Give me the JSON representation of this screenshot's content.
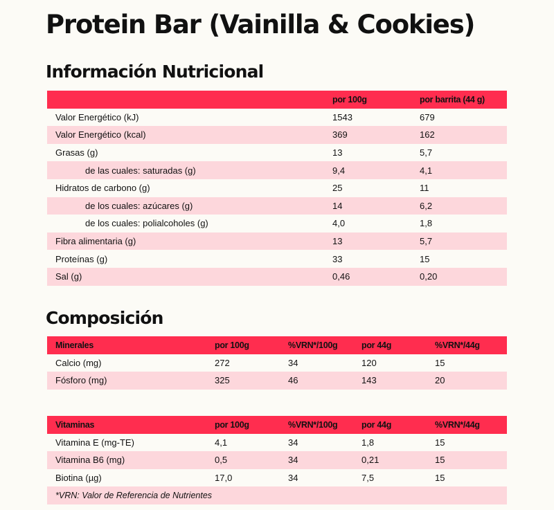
{
  "title": "Protein Bar (Vainilla & Cookies)",
  "nutrition": {
    "heading": "Información Nutricional",
    "columns": [
      "",
      "por 100g",
      "por barrita (44 g)"
    ],
    "rows": [
      {
        "label": "Valor Energético (kJ)",
        "per100": "1543",
        "perBar": "679"
      },
      {
        "label": "Valor Energético (kcal)",
        "per100": "369",
        "perBar": "162"
      },
      {
        "label": "Grasas (g)",
        "per100": "13",
        "perBar": "5,7"
      },
      {
        "label": "de las cuales: saturadas (g)",
        "per100": "9,4",
        "perBar": "4,1"
      },
      {
        "label": "Hidratos de carbono (g)",
        "per100": "25",
        "perBar": "11"
      },
      {
        "label": "de los cuales: azúcares (g)",
        "per100": "14",
        "perBar": "6,2"
      },
      {
        "label": "de los cuales: polialcoholes (g)",
        "per100": "4,0",
        "perBar": "1,8"
      },
      {
        "label": "Fibra alimentaria (g)",
        "per100": "13",
        "perBar": "5,7"
      },
      {
        "label": "Proteínas (g)",
        "per100": "33",
        "perBar": "15"
      },
      {
        "label": "Sal (g)",
        "per100": "0,46",
        "perBar": "0,20"
      }
    ]
  },
  "composition": {
    "heading": "Composición",
    "minerals": {
      "columns": [
        "Minerales",
        "por 100g",
        "%VRN*/100g",
        "por 44g",
        "%VRN*/44g"
      ],
      "rows": [
        [
          "Calcio (mg)",
          "272",
          "34",
          "120",
          "15"
        ],
        [
          "Fósforo (mg)",
          "325",
          "46",
          "143",
          "20"
        ]
      ]
    },
    "vitamins": {
      "columns": [
        "Vitaminas",
        "por 100g",
        "%VRN*/100g",
        "por 44g",
        "%VRN*/44g"
      ],
      "rows": [
        [
          "Vitamina E (mg-TE)",
          "4,1",
          "34",
          "1,8",
          "15"
        ],
        [
          "Vitamina B6 (mg)",
          "0,5",
          "34",
          "0,21",
          "15"
        ],
        [
          "Biotina (µg)",
          "17,0",
          "34",
          "7,5",
          "15"
        ]
      ],
      "footnote": "*VRN: Valor de Referencia de Nutrientes"
    }
  },
  "colors": {
    "header": "#ff2d4f",
    "stripe": "#fdd7dc",
    "background": "#fcfbf6"
  }
}
